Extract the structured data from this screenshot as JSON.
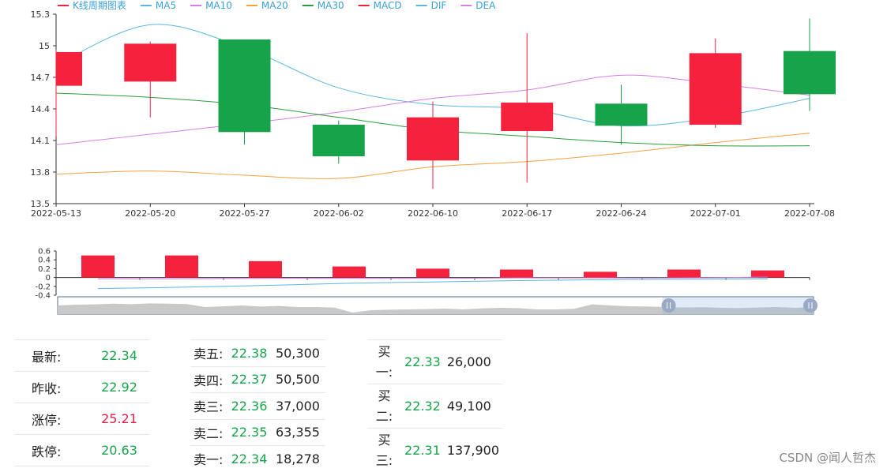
{
  "chart_data": [
    {
      "type": "candlestick",
      "title": "",
      "legend": [
        {
          "name": "K线周期图表",
          "color": "#f5223e"
        },
        {
          "name": "MA5",
          "color": "#5ab6e0"
        },
        {
          "name": "MA10",
          "color": "#d67de8"
        },
        {
          "name": "MA20",
          "color": "#f4a23f"
        },
        {
          "name": "MA30",
          "color": "#2a9d3c"
        },
        {
          "name": "MACD",
          "color": "#f5223e"
        },
        {
          "name": "DIF",
          "color": "#5ab6e0"
        },
        {
          "name": "DEA",
          "color": "#d67de8"
        }
      ],
      "legend_placement": "top-left",
      "categories": [
        "2022-05-13",
        "2022-05-20",
        "2022-05-27",
        "2022-06-02",
        "2022-06-10",
        "2022-06-17",
        "2022-06-24",
        "2022-07-01",
        "2022-07-08"
      ],
      "ohlc": [
        {
          "open": 14.62,
          "close": 14.94,
          "low": 14.14,
          "high": 14.96
        },
        {
          "open": 14.66,
          "close": 15.02,
          "low": 14.32,
          "high": 15.04
        },
        {
          "open": 15.06,
          "close": 14.18,
          "low": 14.06,
          "high": 15.06
        },
        {
          "open": 14.25,
          "close": 13.95,
          "low": 13.88,
          "high": 14.29
        },
        {
          "open": 13.91,
          "close": 14.32,
          "low": 13.64,
          "high": 14.47
        },
        {
          "open": 14.19,
          "close": 14.46,
          "low": 13.7,
          "high": 15.12
        },
        {
          "open": 14.45,
          "close": 14.24,
          "low": 14.06,
          "high": 14.63
        },
        {
          "open": 14.25,
          "close": 14.93,
          "low": 14.22,
          "high": 15.07
        },
        {
          "open": 14.95,
          "close": 14.54,
          "low": 14.38,
          "high": 15.26
        }
      ],
      "up_color": "#f5223e",
      "down_color": "#16a34a",
      "ma_series": [
        {
          "name": "MA5",
          "color": "#5ab6e0",
          "values": [
            14.82,
            15.2,
            14.98,
            14.6,
            14.44,
            14.4,
            14.24,
            14.32,
            14.5
          ]
        },
        {
          "name": "MA10",
          "color": "#d67de8",
          "values": [
            14.06,
            14.16,
            14.26,
            14.37,
            14.5,
            14.58,
            14.72,
            14.64,
            14.53
          ]
        },
        {
          "name": "MA20",
          "color": "#f4a23f",
          "values": [
            13.78,
            13.81,
            13.77,
            13.74,
            13.85,
            13.9,
            13.98,
            14.08,
            14.17
          ]
        },
        {
          "name": "MA30",
          "color": "#2a9d3c",
          "values": [
            14.55,
            14.51,
            14.44,
            14.32,
            14.2,
            14.14,
            14.08,
            14.05,
            14.05
          ]
        }
      ],
      "ylim": [
        13.5,
        15.3
      ],
      "yticks": [
        "15.3",
        "15",
        "14.7",
        "14.4",
        "14.1",
        "13.8",
        "13.5"
      ],
      "ytick_values": [
        15.3,
        15.0,
        14.7,
        14.4,
        14.1,
        13.8,
        13.5
      ],
      "grid": false
    },
    {
      "type": "bar",
      "title": "",
      "categories": [
        "2022-05-13",
        "2022-05-20",
        "2022-05-27",
        "2022-06-02",
        "2022-06-10",
        "2022-06-17",
        "2022-06-24",
        "2022-07-01",
        "2022-07-08"
      ],
      "series": [
        {
          "name": "MACD",
          "color": "#f5223e",
          "values": [
            0.5,
            0.5,
            0.37,
            0.25,
            0.2,
            0.18,
            0.13,
            0.18,
            0.16
          ]
        },
        {
          "name": "DIF",
          "color": "#5ab6e0",
          "values": [
            -0.25,
            -0.22,
            -0.18,
            -0.13,
            -0.1,
            -0.07,
            -0.05,
            -0.04,
            -0.03
          ]
        },
        {
          "name": "DEA",
          "color": "#d67de8",
          "values": [
            -0.03,
            -0.03,
            -0.02,
            -0.02,
            -0.02,
            -0.01,
            -0.01,
            -0.01,
            0.01
          ]
        }
      ],
      "ylim": [
        -0.4,
        0.6
      ],
      "yticks": [
        "0.6",
        "0.4",
        "0.2",
        "0",
        "-0.2",
        "-0.4"
      ],
      "ytick_values": [
        0.6,
        0.4,
        0.2,
        0,
        -0.2,
        -0.4
      ]
    }
  ],
  "zoom": {
    "start": 0.8,
    "end": 1.0
  },
  "quote": {
    "latest_label": "最新:",
    "latest_value": "22.34",
    "prev_close_label": "昨收:",
    "prev_close_value": "22.92",
    "limit_up_label": "涨停:",
    "limit_up_value": "25.21",
    "limit_down_label": "跌停:",
    "limit_down_value": "20.63"
  },
  "asks": [
    {
      "label": "卖五:",
      "price": "22.38",
      "volume": "50,300"
    },
    {
      "label": "卖四:",
      "price": "22.37",
      "volume": "50,500"
    },
    {
      "label": "卖三:",
      "price": "22.36",
      "volume": "37,000"
    },
    {
      "label": "卖二:",
      "price": "22.35",
      "volume": "63,355"
    },
    {
      "label": "卖一:",
      "price": "22.34",
      "volume": "18,278"
    }
  ],
  "bids": [
    {
      "label_line1": "买",
      "label_line2": "一:",
      "price": "22.33",
      "volume": "26,000"
    },
    {
      "label_line1": "买",
      "label_line2": "二:",
      "price": "22.32",
      "volume": "49,100"
    },
    {
      "label_line1": "买",
      "label_line2": "三:",
      "price": "22.31",
      "volume": "137,900"
    }
  ],
  "watermark": "CSDN @闻人哲杰"
}
